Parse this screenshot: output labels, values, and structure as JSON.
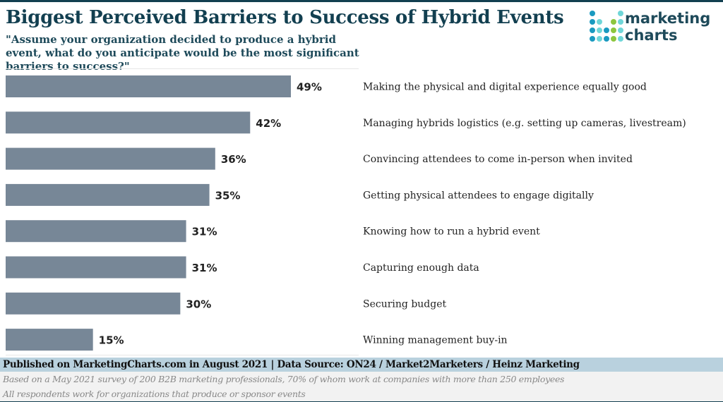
{
  "title": "Biggest Perceived Barriers to Success of Hybrid Events",
  "subtitle": "\"Assume your organization decided to produce a hybrid event, what do you anticipate would be the most significant barriers to success?\"",
  "logo": {
    "line1": "marketing",
    "line2": "charts",
    "colors": {
      "blue": "#1a9ac0",
      "cyan": "#6fd6d8",
      "green": "#8dc63f"
    }
  },
  "colors": {
    "bar": "#778797",
    "title": "#123f50",
    "footer_band": "#b9d1de"
  },
  "chart_data": {
    "type": "bar",
    "orientation": "horizontal",
    "categories": [
      "Making the physical and digital experience equally good",
      "Managing hybrids logistics (e.g. setting up cameras, livestream)",
      "Convincing attendees to come in-person when invited",
      "Getting physical attendees to engage digitally",
      "Knowing how to run a hybrid event",
      "Capturing enough data",
      "Securing budget",
      "Winning management buy-in"
    ],
    "values": [
      49,
      42,
      36,
      35,
      31,
      31,
      30,
      15
    ],
    "data_labels": [
      "49%",
      "42%",
      "36%",
      "35%",
      "31%",
      "31%",
      "30%",
      "15%"
    ],
    "unit": "%",
    "grid": false
  },
  "footer": {
    "published": "Published on MarketingCharts.com in August 2021 | Data Source: ON24 / Market2Marketers / Heinz Marketing",
    "note1": "Based on a May 2021 survey of 200 B2B marketing professionals, 70% of whom work at companies with more than 250 employees",
    "note2": "All respondents work for organizations that produce or sponsor events"
  }
}
